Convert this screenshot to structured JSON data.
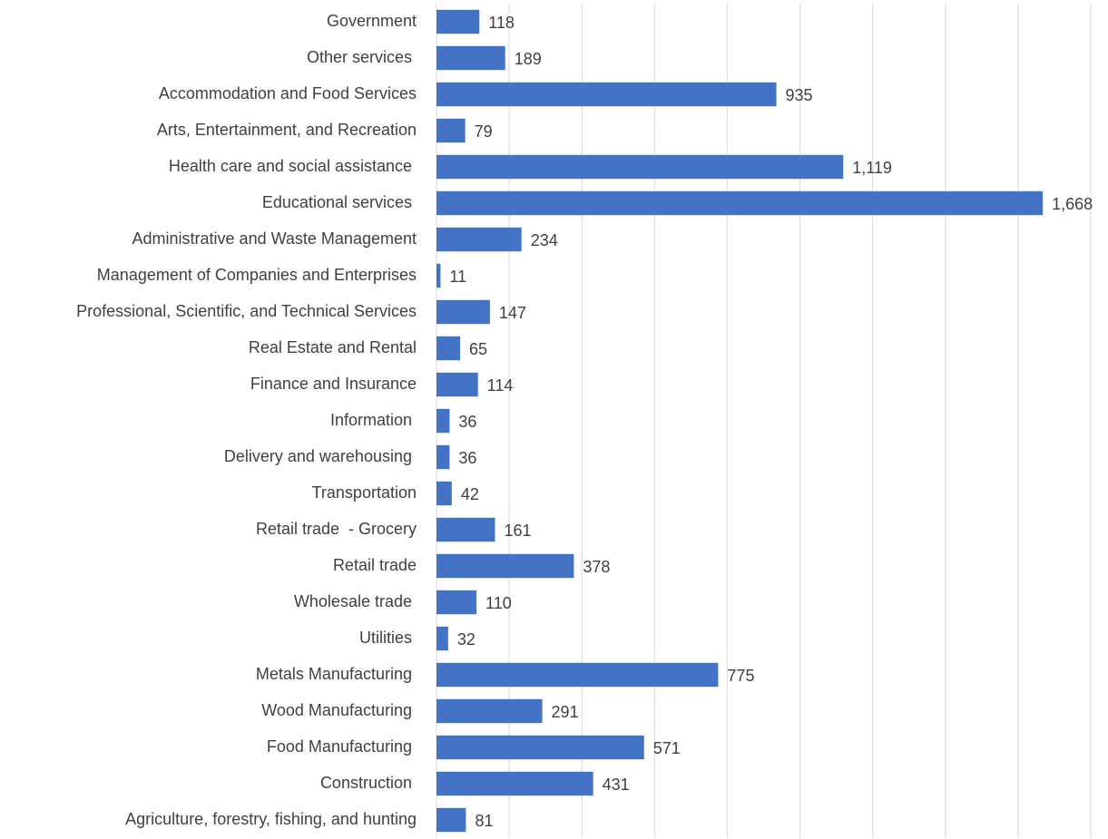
{
  "chart_data": {
    "type": "barh",
    "categories": [
      "Government",
      "Other services ",
      "Accommodation and Food Services",
      "Arts, Entertainment, and Recreation",
      "Health care and social assistance ",
      "Educational services ",
      "Administrative and Waste Management",
      "Management of Companies and Enterprises",
      "Professional, Scientific, and Technical Services",
      "Real Estate and Rental",
      "Finance and Insurance",
      "Information ",
      "Delivery and warehousing ",
      "Transportation",
      "Retail trade  - Grocery",
      "Retail trade",
      "Wholesale trade ",
      "Utilities ",
      "Metals Manufacturing ",
      "Wood Manufacturing ",
      "Food Manufacturing ",
      "Construction ",
      "Agriculture, forestry, fishing, and hunting"
    ],
    "values": [
      118,
      189,
      935,
      79,
      1119,
      1668,
      234,
      11,
      147,
      65,
      114,
      36,
      36,
      42,
      161,
      378,
      110,
      32,
      775,
      291,
      571,
      431,
      81
    ],
    "value_labels": [
      "118",
      "189",
      "935",
      "79",
      "1,119",
      "1,668",
      "234",
      "11",
      "147",
      "65",
      "114",
      "36",
      "36",
      "42",
      "161",
      "378",
      "110",
      "32",
      "775",
      "291",
      "571",
      "431",
      "81"
    ],
    "color": "#4472c4",
    "xlim": [
      0,
      1800
    ],
    "xticks": [
      0,
      200,
      400,
      600,
      800,
      1000,
      1200,
      1400,
      1600,
      1800
    ],
    "grid": true
  }
}
